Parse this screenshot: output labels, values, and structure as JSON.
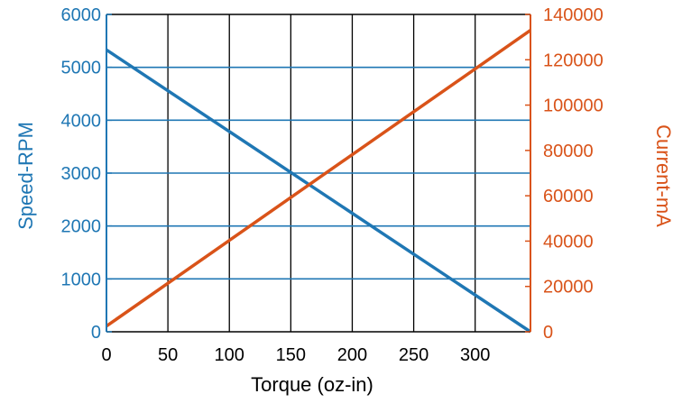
{
  "chart_data": {
    "type": "line",
    "title": "",
    "xlabel": "Torque (oz-in)",
    "ylabel_left": "Speed-RPM",
    "ylabel_right": "Current-mA",
    "xlim": [
      0,
      345
    ],
    "ylim_left": [
      0,
      6000
    ],
    "ylim_right": [
      0,
      140000
    ],
    "x_ticks": [
      0,
      50,
      100,
      150,
      200,
      250,
      300
    ],
    "y_left_ticks": [
      0,
      1000,
      2000,
      3000,
      4000,
      5000,
      6000
    ],
    "y_right_ticks": [
      0,
      20000,
      40000,
      60000,
      80000,
      100000,
      120000,
      140000
    ],
    "grid": true,
    "series": [
      {
        "name": "Speed-RPM",
        "axis": "left",
        "color": "#1f77b4",
        "x": [
          0,
          345
        ],
        "y": [
          5330,
          0
        ]
      },
      {
        "name": "Current-mA",
        "axis": "right",
        "color": "#d95319",
        "x": [
          0,
          345
        ],
        "y": [
          2500,
          133000
        ]
      }
    ],
    "colors": {
      "left_axis": "#1f77b4",
      "right_axis": "#d95319",
      "grid": "#000000"
    }
  }
}
